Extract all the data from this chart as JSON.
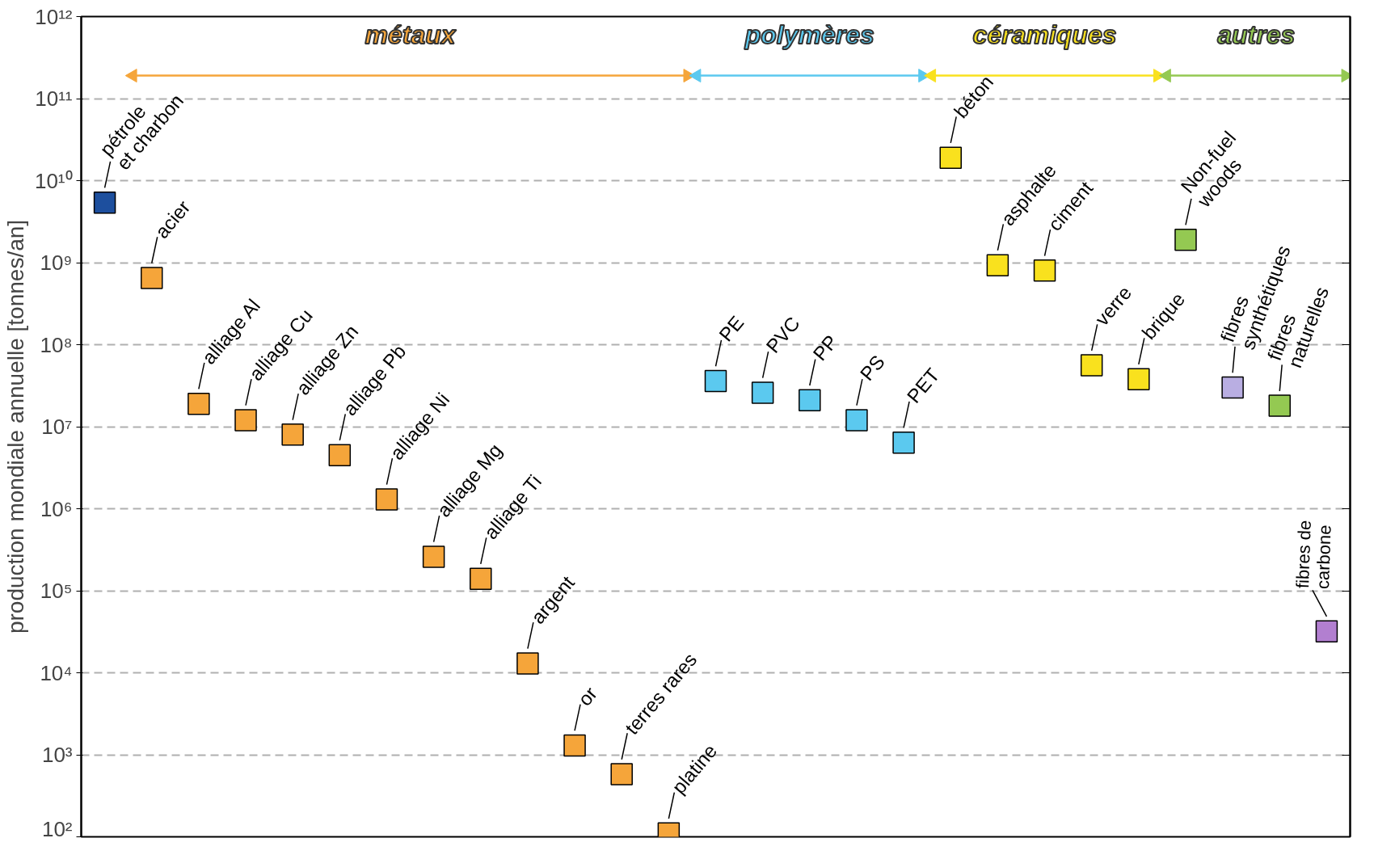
{
  "chart_data": {
    "type": "scatter",
    "ylabel": "production mondiale annuelle [tonnes/an]",
    "categories": [
      null,
      null,
      null,
      null,
      null,
      null,
      null,
      null,
      null,
      null,
      null,
      null,
      null,
      null,
      null,
      null,
      null,
      null,
      null,
      null,
      null,
      null,
      null,
      null,
      null,
      null,
      null
    ],
    "series": [
      {
        "color": "#1d4f9e",
        "values": [
          5400000000.0,
          null,
          null,
          null,
          null,
          null,
          null,
          null,
          null,
          null,
          null,
          null,
          null,
          null,
          null,
          null,
          null,
          null,
          null,
          null,
          null,
          null,
          null,
          null,
          null,
          null,
          null
        ],
        "value_labels": [
          "pétrole\net charbon",
          null,
          null,
          null,
          null,
          null,
          null,
          null,
          null,
          null,
          null,
          null,
          null,
          null,
          null,
          null,
          null,
          null,
          null,
          null,
          null,
          null,
          null,
          null,
          null,
          null,
          null
        ]
      },
      {
        "name": "métaux",
        "color": "#f5a53a",
        "values": [
          null,
          650000000.0,
          19000000.0,
          12000000.0,
          8000000.0,
          4500000.0,
          1300000.0,
          260000.0,
          140000.0,
          13000.0,
          1300.0,
          580.0,
          110.0,
          null,
          null,
          null,
          null,
          null,
          null,
          null,
          null,
          null,
          null,
          null,
          null,
          null,
          null
        ],
        "value_labels": [
          null,
          "acier",
          "alliage Al",
          "alliage Cu",
          "alliage Zn",
          "alliage Pb",
          "alliage Ni",
          "alliage Mg",
          "alliage Ti",
          "argent",
          "or",
          "terres rares",
          "platine",
          null,
          null,
          null,
          null,
          null,
          null,
          null,
          null,
          null,
          null,
          null,
          null,
          null,
          null
        ]
      },
      {
        "name": "polymères",
        "color": "#5bc9ef",
        "values": [
          null,
          null,
          null,
          null,
          null,
          null,
          null,
          null,
          null,
          null,
          null,
          null,
          null,
          36000000.0,
          26000000.0,
          21000000.0,
          12000000.0,
          6400000.0,
          null,
          null,
          null,
          null,
          null,
          null,
          null,
          null,
          null
        ],
        "value_labels": [
          null,
          null,
          null,
          null,
          null,
          null,
          null,
          null,
          null,
          null,
          null,
          null,
          null,
          "PE",
          "PVC",
          "PP",
          "PS",
          "PET",
          null,
          null,
          null,
          null,
          null,
          null,
          null,
          null,
          null
        ]
      },
      {
        "name": "céramiques",
        "color": "#f9e11e",
        "values": [
          null,
          null,
          null,
          null,
          null,
          null,
          null,
          null,
          null,
          null,
          null,
          null,
          null,
          null,
          null,
          null,
          null,
          null,
          19000000000.0,
          930000000.0,
          800000000.0,
          56000000.0,
          38000000.0,
          null,
          null,
          null,
          null
        ],
        "value_labels": [
          null,
          null,
          null,
          null,
          null,
          null,
          null,
          null,
          null,
          null,
          null,
          null,
          null,
          null,
          null,
          null,
          null,
          null,
          "béton",
          "asphalte",
          "ciment",
          "verre",
          "brique",
          null,
          null,
          null,
          null
        ]
      },
      {
        "name": "autres",
        "color": "#94c952",
        "colors": [
          null,
          null,
          null,
          null,
          null,
          null,
          null,
          null,
          null,
          null,
          null,
          null,
          null,
          null,
          null,
          null,
          null,
          null,
          null,
          null,
          null,
          null,
          null,
          "#94c952",
          "#b9aee2",
          "#94c952",
          "#b27fd0"
        ],
        "values": [
          null,
          null,
          null,
          null,
          null,
          null,
          null,
          null,
          null,
          null,
          null,
          null,
          null,
          null,
          null,
          null,
          null,
          null,
          null,
          null,
          null,
          null,
          null,
          1900000000.0,
          30000000.0,
          18000000.0,
          32000.0
        ],
        "value_labels": [
          null,
          null,
          null,
          null,
          null,
          null,
          null,
          null,
          null,
          null,
          null,
          null,
          null,
          null,
          null,
          null,
          null,
          null,
          null,
          null,
          null,
          null,
          null,
          "Non-fuel\nwoods",
          "fibres\nsynthétiques",
          "fibres\nnaturelles",
          "fibres de\ncarbone"
        ]
      }
    ],
    "log": "y",
    "ylim": [
      100.0,
      1000000000000.0
    ],
    "yticks": [
      {
        "value": 100.0,
        "label": "10²"
      },
      {
        "value": 1000.0,
        "label": "10³"
      },
      {
        "value": 10000.0,
        "label": "10⁴"
      },
      {
        "value": 100000.0,
        "label": "10⁵"
      },
      {
        "value": 1000000.0,
        "label": "10⁶"
      },
      {
        "value": 10000000.0,
        "label": "10⁷"
      },
      {
        "value": 100000000.0,
        "label": "10⁸"
      },
      {
        "value": 1000000000.0,
        "label": "10⁹"
      },
      {
        "value": 10000000000.0,
        "label": "10¹⁰"
      },
      {
        "value": 100000000000.0,
        "label": "10¹¹"
      },
      {
        "value": 1000000000000.0,
        "label": "10¹²"
      }
    ],
    "grid": "y",
    "marker": "square",
    "tick_labels": "y"
  }
}
